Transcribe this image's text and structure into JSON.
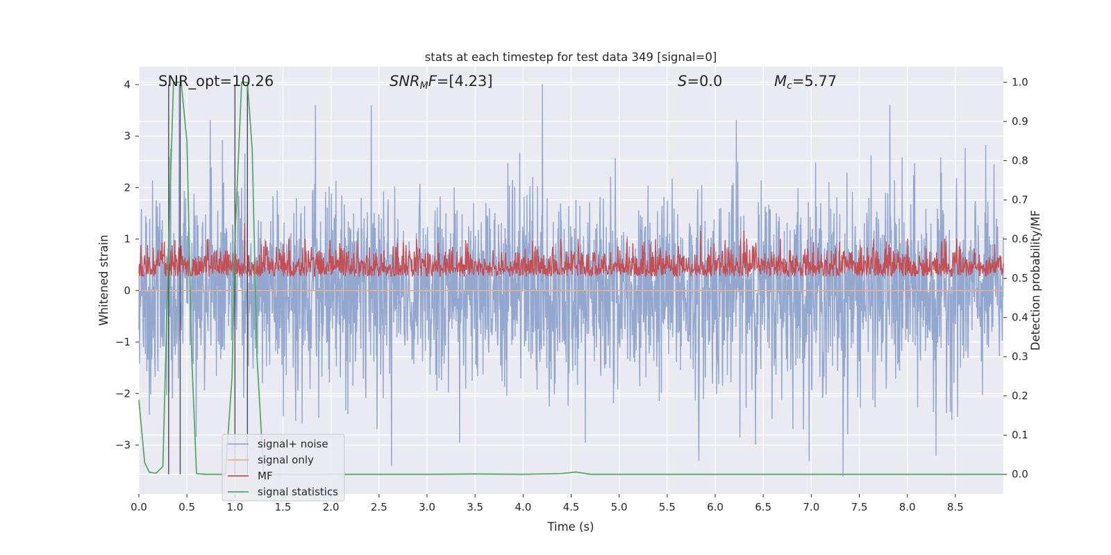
{
  "chart_data": {
    "type": "line",
    "title": "stats at each timestep for test data 349 [signal=0]",
    "xlabel": "Time (s)",
    "ylabel_left": "Whitened strain",
    "ylabel_right": "Detection probability/MF",
    "xlim": [
      0.0,
      9.0
    ],
    "ylim_left": [
      -3.95,
      4.35
    ],
    "ylim_right": [
      -0.05,
      1.04
    ],
    "xticks": [
      "0.0",
      "0.5",
      "1.0",
      "1.5",
      "2.0",
      "2.5",
      "3.0",
      "3.5",
      "4.0",
      "4.5",
      "5.0",
      "5.5",
      "6.0",
      "6.5",
      "7.0",
      "7.5",
      "8.0",
      "8.5"
    ],
    "yticks_left": [
      "4",
      "3",
      "2",
      "1",
      "0",
      "−1",
      "−2",
      "−3"
    ],
    "yticks_right": [
      "1.0",
      "0.9",
      "0.8",
      "0.7",
      "0.6",
      "0.5",
      "0.4",
      "0.3",
      "0.2",
      "0.1",
      "0.0"
    ],
    "grid": true,
    "legend_position": "lower-left",
    "annotations": {
      "snr_opt": "SNR_opt=10.26",
      "snr_mf": "=[4.23]",
      "snr_mf_symbol": "SNR",
      "snr_mf_sub": "M",
      "snr_mf_tail": "F",
      "s_symbol": "S",
      "s_value": "=0.0",
      "mc_symbol": "M",
      "mc_sub": "c",
      "mc_value": "=5.77"
    },
    "series": [
      {
        "name": "signal+ noise",
        "axis": "left",
        "color": "#94a8cf",
        "description_of_shape": "white noise, amplitude mostly within ±2, occasional spikes to about ±3.5",
        "spikes": [
          [
            0.33,
            2.75
          ],
          [
            0.42,
            4.0
          ],
          [
            1.84,
            3.6
          ],
          [
            2.42,
            3.6
          ],
          [
            4.2,
            4.0
          ],
          [
            6.22,
            3.3
          ],
          [
            7.82,
            3.6
          ],
          [
            2.63,
            -3.4
          ],
          [
            5.83,
            -3.3
          ],
          [
            7.33,
            -3.6
          ],
          [
            8.3,
            -3.2
          ],
          [
            4.65,
            -2.95
          ],
          [
            3.34,
            -2.95
          ]
        ]
      },
      {
        "name": "signal only",
        "axis": "left",
        "color": "#e5ae8f",
        "values": "flat at 0"
      },
      {
        "name": "MF",
        "axis": "right",
        "color": "#c44e52",
        "description_of_shape": "noisy band between about 0.5 and 0.62, spikes near 1.1 s (0.64), 5.85 s (0.62), 6.3 s (0.62)"
      },
      {
        "name": "signal statistics",
        "axis": "right",
        "color": "#55a868",
        "x": [
          0.0,
          0.06,
          0.11,
          0.18,
          0.25,
          0.3,
          0.36,
          0.44,
          0.5,
          0.55,
          0.6,
          0.7,
          0.9,
          0.97,
          1.0,
          1.07,
          1.13,
          1.18,
          1.23,
          1.3,
          1.5,
          3.0,
          3.5,
          4.0,
          4.4,
          4.55,
          4.7,
          5.0,
          9.0
        ],
        "values": [
          0.19,
          0.03,
          0.005,
          0.003,
          0.02,
          0.5,
          1.0,
          1.0,
          0.85,
          0.3,
          0.002,
          0.0,
          0.0,
          0.25,
          0.6,
          1.0,
          1.0,
          0.83,
          0.3,
          0.0,
          0.0,
          0.0,
          0.001,
          0.0,
          0.002,
          0.006,
          0.0,
          0.0,
          0.0
        ]
      }
    ],
    "vertical_markers": [
      0.31,
      0.43,
      1.0,
      1.13
    ]
  }
}
